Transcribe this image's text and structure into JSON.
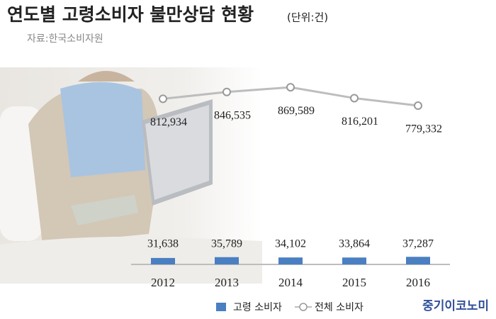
{
  "chart_data": {
    "type": "bar-line",
    "title": "연도별 고령소비자 불만상담 현황",
    "unit": "(단위:건)",
    "subtitle": "자료:한국소비자원",
    "brand": "중기이코노미",
    "categories": [
      "2012",
      "2013",
      "2014",
      "2015",
      "2016"
    ],
    "series": [
      {
        "name": "고령 소비자",
        "type": "bar",
        "color": "#4a7fc1",
        "values": [
          31638,
          35789,
          34102,
          33864,
          37287
        ],
        "value_labels": [
          "31,638",
          "35,789",
          "34,102",
          "33,864",
          "37,287"
        ]
      },
      {
        "name": "전체 소비자",
        "type": "line",
        "color": "#bdbdbd",
        "values": [
          812934,
          846535,
          869589,
          816201,
          779332
        ],
        "value_labels": [
          "812,934",
          "846,535",
          "869,589",
          "816,201",
          "779,332"
        ]
      }
    ],
    "ylim": [
      0,
      950000
    ]
  }
}
